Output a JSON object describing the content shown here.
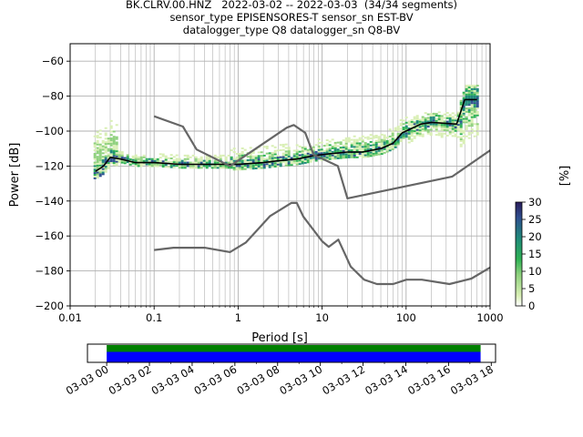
{
  "title_lines": [
    "BK.CLRV.00.HNZ   2022-03-02 -- 2022-03-03  (34/34 segments)",
    "sensor_type EPISENSORES-T sensor_sn EST-BV",
    "datalogger_type Q8 datalogger_sn Q8-BV"
  ],
  "colors": {
    "noise_model": "#666666",
    "median": "#000000",
    "timeline_green": "#008000",
    "timeline_blue": "#0000ff",
    "grid": "#b0b0b0"
  },
  "chart_data": [
    {
      "type": "heatmap",
      "title": "",
      "xlabel": "Period [s]",
      "ylabel": "Power [dB]",
      "xscale": "log",
      "xlim": [
        0.01,
        1000
      ],
      "ylim": [
        -200,
        -50
      ],
      "xtick_labels": [
        "0.01",
        "0.1",
        "1",
        "10",
        "100",
        "1000"
      ],
      "xtick_values": [
        0.01,
        0.1,
        1,
        10,
        100,
        1000
      ],
      "ytick_values": [
        -60,
        -80,
        -100,
        -120,
        -140,
        -160,
        -180,
        -200
      ],
      "ytick_labels": [
        "−60",
        "−80",
        "−100",
        "−120",
        "−140",
        "−160",
        "−180",
        "−200"
      ],
      "grid": true,
      "colorbar": {
        "label": "[%]",
        "min": 0,
        "max": 30,
        "tick_values": [
          0,
          5,
          10,
          15,
          20,
          25,
          30
        ],
        "tick_labels": [
          "0",
          "5",
          "10",
          "15",
          "20",
          "25",
          "30"
        ],
        "colormap": [
          "#ffffff",
          "#d9efb5",
          "#8fd17e",
          "#2fb255",
          "#1f8a7a",
          "#2f4f8f",
          "#2a1d5c"
        ]
      },
      "series": [
        {
          "kind": "median",
          "x": [
            0.02,
            0.025,
            0.03,
            0.04,
            0.06,
            0.1,
            0.2,
            0.5,
            1,
            2,
            3,
            5,
            8,
            12,
            20,
            30,
            50,
            70,
            90,
            110,
            150,
            200,
            400,
            500,
            700
          ],
          "y": [
            -123,
            -120,
            -115,
            -116,
            -118,
            -118,
            -119,
            -119,
            -119,
            -118,
            -117,
            -116,
            -114,
            -113,
            -112,
            -112,
            -110,
            -107,
            -101,
            -99,
            -96,
            -95,
            -96,
            -82,
            -82
          ]
        },
        {
          "kind": "high_noise_model",
          "x": [
            0.1,
            0.22,
            0.32,
            0.8,
            3.8,
            4.6,
            6.3,
            7.9,
            15.4,
            20,
            354.8,
            1000
          ],
          "y": [
            -91.5,
            -97.4,
            -110.5,
            -120,
            -98,
            -96.5,
            -101,
            -113.5,
            -120,
            -138.5,
            -126,
            -111
          ]
        },
        {
          "kind": "low_noise_model",
          "x": [
            0.1,
            0.17,
            0.4,
            0.8,
            1.24,
            2.4,
            4.3,
            5,
            6,
            10,
            12,
            15.6,
            21.9,
            31.6,
            45,
            70,
            101,
            154,
            328,
            600,
            1000
          ],
          "y": [
            -168,
            -166.7,
            -166.7,
            -169.2,
            -163.7,
            -148.6,
            -141.1,
            -141.1,
            -149,
            -163,
            -166.2,
            -162.1,
            -177.5,
            -185,
            -187.5,
            -187.5,
            -185,
            -185,
            -187.5,
            -184.4,
            -178
          ]
        }
      ],
      "density": [
        {
          "period_range": [
            0.02,
            0.035
          ],
          "power_range": [
            -126,
            -100
          ],
          "level": "spread"
        },
        {
          "period_range": [
            0.035,
            0.8
          ],
          "power_range": [
            -120,
            -113
          ],
          "level": "narrow"
        },
        {
          "period_range": [
            0.8,
            100
          ],
          "power_range": [
            -122,
            -100
          ],
          "level": "wide"
        },
        {
          "period_range": [
            100,
            400
          ],
          "power_range": [
            -106,
            -90
          ],
          "level": "medium"
        },
        {
          "period_range": [
            450,
            700
          ],
          "power_range": [
            -104,
            -74
          ],
          "level": "peak"
        }
      ]
    },
    {
      "type": "bar",
      "title": "",
      "xlabel": "",
      "ylabel": "",
      "xtick_labels": [
        "03-03 00",
        "03-03 02",
        "03-03 04",
        "03-03 06",
        "03-03 08",
        "03-03 10",
        "03-03 12",
        "03-03 14",
        "03-03 16",
        "03-03 18"
      ],
      "series": [
        {
          "name": "",
          "start_hour": 0,
          "end_hour": 17.5,
          "color": "#008000"
        },
        {
          "name": "",
          "start_hour": 0,
          "end_hour": 17.5,
          "color": "#0000ff"
        }
      ],
      "xlim_hours": [
        -0.9,
        18.2
      ]
    }
  ]
}
